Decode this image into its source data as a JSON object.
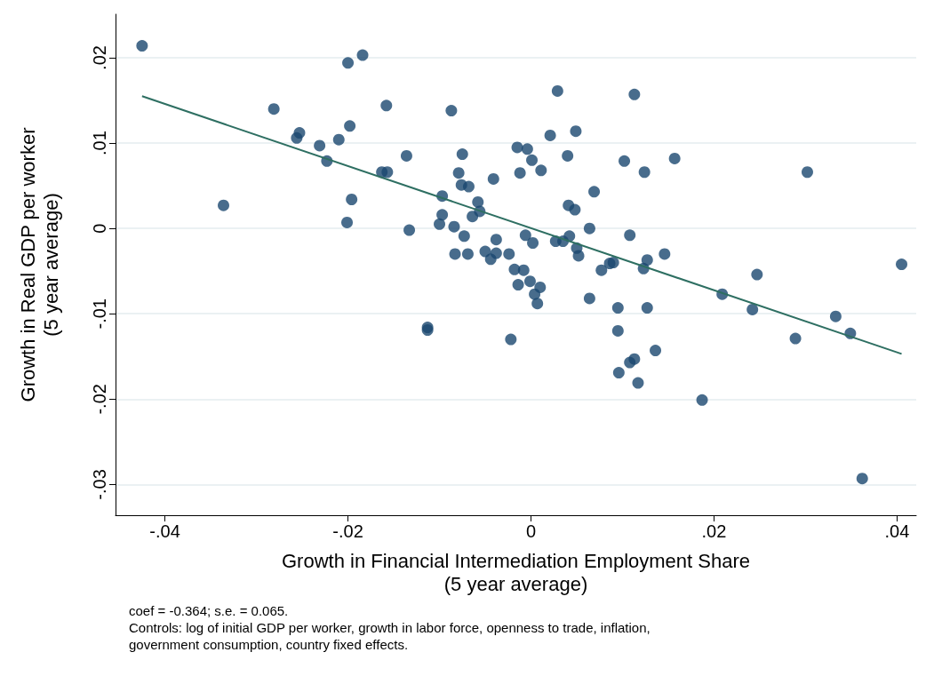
{
  "chart_data": {
    "type": "scatter",
    "xlabel": "Growth in Financial Intermediation Employment Share\n(5 year average)",
    "ylabel": "Growth in Real GDP per worker\n(5 year average)",
    "annotations": [
      "coef = -0.364; s.e. = 0.065.",
      "Controls: log of initial GDP per worker, growth in labor force, openness to trade, inflation,",
      "government consumption, country fixed effects."
    ],
    "xlim": [
      -0.0454,
      0.0421
    ],
    "ylim": [
      -0.0336,
      0.0251
    ],
    "xticks": [
      {
        "value": -0.04,
        "label": "-.04"
      },
      {
        "value": -0.02,
        "label": "-.02"
      },
      {
        "value": 0,
        "label": "0"
      },
      {
        "value": 0.02,
        "label": ".02"
      },
      {
        "value": 0.04,
        "label": ".04"
      }
    ],
    "yticks": [
      {
        "value": -0.03,
        "label": "-.03"
      },
      {
        "value": -0.02,
        "label": "-.02"
      },
      {
        "value": -0.01,
        "label": "-.01"
      },
      {
        "value": 0,
        "label": "0"
      },
      {
        "value": 0.01,
        "label": ".01"
      },
      {
        "value": 0.02,
        "label": ".02"
      }
    ],
    "grid": "y",
    "marker": "circle",
    "series": [
      {
        "color": "#1a476f",
        "x": [
          -0.0425,
          -0.0336,
          -0.0281,
          -0.0256,
          -0.0253,
          -0.0231,
          -0.0223,
          -0.021,
          -0.02,
          -0.0184,
          -0.0198,
          -0.0196,
          -0.0201,
          -0.0158,
          -0.0163,
          -0.0157,
          -0.0136,
          -0.0133,
          -0.0113,
          -0.0113,
          -0.0087,
          -0.0097,
          -0.0097,
          -0.01,
          -0.0084,
          -0.0083,
          -0.0079,
          -0.0075,
          -0.0076,
          -0.0068,
          -0.0073,
          -0.0069,
          -0.0064,
          -0.0058,
          -0.0056,
          -0.005,
          -0.0044,
          -0.0041,
          -0.0038,
          -0.0038,
          -0.0024,
          -0.0022,
          -0.0018,
          -0.0015,
          -0.0014,
          -0.0012,
          -0.0008,
          -0.0006,
          -0.0004,
          -0.0001,
          0.0001,
          0.0002,
          0.0004,
          0.0007,
          0.001,
          0.0011,
          0.0021,
          0.0027,
          0.0029,
          0.0035,
          0.004,
          0.0041,
          0.0042,
          0.0048,
          0.0049,
          0.005,
          0.0052,
          0.0064,
          0.0064,
          0.0069,
          0.0077,
          0.0086,
          0.009,
          0.0095,
          0.0095,
          0.0096,
          0.0102,
          0.0108,
          0.0108,
          0.0113,
          0.0113,
          0.0117,
          0.0123,
          0.0124,
          0.0127,
          0.0127,
          0.0136,
          0.0146,
          0.0157,
          0.0187,
          0.0209,
          0.0242,
          0.0247,
          0.0289,
          0.0302,
          0.0333,
          0.0349,
          0.0362,
          0.0405
        ],
        "values": [
          0.0214,
          0.0027,
          0.014,
          0.0106,
          0.0112,
          0.0097,
          0.0079,
          0.0104,
          0.0194,
          0.0203,
          0.012,
          0.0034,
          0.0007,
          0.0144,
          0.0066,
          0.0066,
          0.0085,
          -0.0002,
          -0.0116,
          -0.0119,
          0.0138,
          0.0038,
          0.0016,
          0.0005,
          0.0002,
          -0.003,
          0.0065,
          0.0087,
          0.0051,
          0.0049,
          -0.0009,
          -0.003,
          0.0014,
          0.0031,
          0.002,
          -0.0027,
          -0.0036,
          0.0058,
          -0.0013,
          -0.0029,
          -0.003,
          -0.013,
          -0.0048,
          0.0095,
          -0.0066,
          0.0065,
          -0.0049,
          -0.0008,
          0.0093,
          -0.0062,
          0.008,
          -0.0017,
          -0.0077,
          -0.0088,
          -0.0069,
          0.0068,
          0.0109,
          -0.0015,
          0.0161,
          -0.0015,
          0.0085,
          0.0027,
          -0.0009,
          0.0022,
          0.0114,
          -0.0023,
          -0.0032,
          0.0,
          -0.0082,
          0.0043,
          -0.0049,
          -0.0041,
          -0.004,
          -0.0093,
          -0.012,
          -0.0169,
          0.0079,
          -0.0008,
          -0.0157,
          -0.0153,
          0.0157,
          -0.0181,
          -0.0047,
          0.0066,
          -0.0037,
          -0.0093,
          -0.0143,
          -0.003,
          0.0082,
          -0.0201,
          -0.0077,
          -0.0095,
          -0.0054,
          -0.0129,
          0.0066,
          -0.0103,
          -0.0123,
          -0.0293,
          -0.0042
        ]
      },
      {
        "type": "line",
        "color": "#2e6f62",
        "marker": "none",
        "line_style": "solid",
        "x": [
          -0.0425,
          0.0405
        ],
        "values": [
          0.0155,
          -0.0147
        ]
      }
    ]
  }
}
